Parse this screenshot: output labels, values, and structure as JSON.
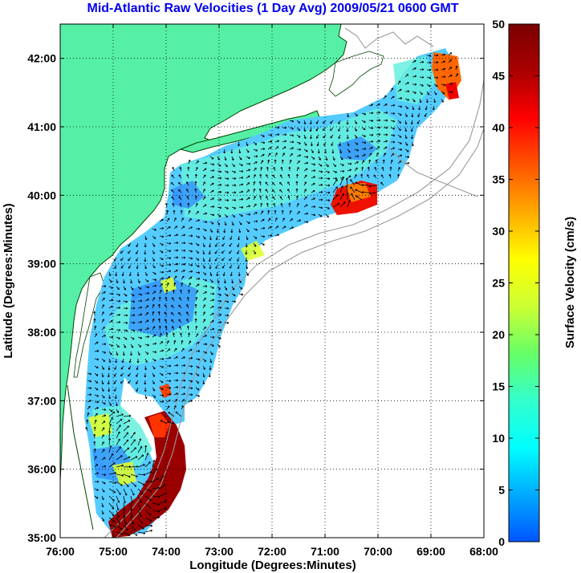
{
  "title": "Mid-Atlantic Raw Velocities (1 Day Avg) 2009/05/21 0600 GMT",
  "x_axis": {
    "label": "Longitude (Degrees:Minutes)",
    "ticks": [
      "76:00",
      "75:00",
      "74:00",
      "73:00",
      "72:00",
      "71:00",
      "70:00",
      "69:00",
      "68:00"
    ],
    "range_deg_west": [
      76,
      68
    ]
  },
  "y_axis": {
    "label": "Latitude (Degrees:Minutes)",
    "ticks": [
      "35:00",
      "36:00",
      "37:00",
      "38:00",
      "39:00",
      "40:00",
      "41:00",
      "42:00"
    ],
    "range_deg_north": [
      35,
      42.5
    ]
  },
  "colorbar": {
    "label": "Surface Velocity (cm/s)",
    "ticks": [
      "0",
      "5",
      "10",
      "15",
      "20",
      "25",
      "30",
      "35",
      "40",
      "45",
      "50"
    ],
    "range": [
      0,
      50
    ],
    "colormap": [
      "#0055ff",
      "#00aaff",
      "#00ffff",
      "#33ffcc",
      "#66ff66",
      "#ccff33",
      "#ffff00",
      "#ffaa00",
      "#ff5500",
      "#ff0000",
      "#aa0000",
      "#7a0000"
    ]
  },
  "colors": {
    "title": "#0000ee",
    "land": "#55f0a6",
    "coastline": "#004400",
    "bathymetry": "#9a9a9a",
    "grid": "#000000",
    "ocean_no_data": "#ffffff"
  },
  "grid": true
}
